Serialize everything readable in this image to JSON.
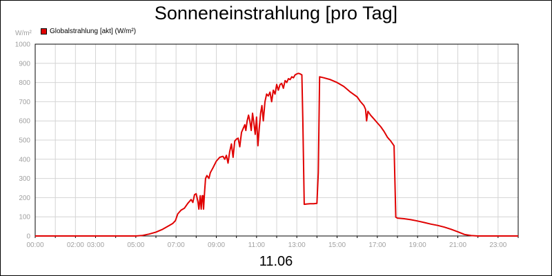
{
  "chart_data": {
    "type": "line",
    "title": "Sonneneinstrahlung [pro Tag]",
    "unit_label": "W/m²",
    "xlabel": "11.06",
    "ylim": [
      0,
      1000
    ],
    "xlim": [
      "00:00",
      "24:00"
    ],
    "y_ticks": [
      "0",
      "100",
      "200",
      "300",
      "400",
      "500",
      "600",
      "700",
      "800",
      "900",
      "1000"
    ],
    "x_ticks": [
      {
        "h": 0,
        "label": "00:00"
      },
      {
        "h": 2,
        "label": "02:00"
      },
      {
        "h": 3,
        "label": "03:00"
      },
      {
        "h": 5,
        "label": "05:00"
      },
      {
        "h": 7,
        "label": "07:00"
      },
      {
        "h": 9,
        "label": "09:00"
      },
      {
        "h": 11,
        "label": "11:00"
      },
      {
        "h": 13,
        "label": "13:00"
      },
      {
        "h": 15,
        "label": "15:00"
      },
      {
        "h": 17,
        "label": "17:00"
      },
      {
        "h": 19,
        "label": "19:00"
      },
      {
        "h": 21,
        "label": "21:00"
      },
      {
        "h": 23,
        "label": "23:00"
      }
    ],
    "grid": true,
    "legend_position": "top-left",
    "colors": {
      "series": "#e00000",
      "grid": "#d4d4d4",
      "axis": "#000000",
      "tick_text": "#a0a0a0"
    },
    "series": [
      {
        "name": "Globalstrahlung [akt] (W/m²)",
        "points": [
          [
            "00:00",
            0
          ],
          [
            "05:00",
            0
          ],
          [
            "05:20",
            3
          ],
          [
            "05:40",
            10
          ],
          [
            "06:00",
            20
          ],
          [
            "06:20",
            35
          ],
          [
            "06:40",
            55
          ],
          [
            "06:50",
            65
          ],
          [
            "06:58",
            80
          ],
          [
            "07:05",
            115
          ],
          [
            "07:15",
            135
          ],
          [
            "07:25",
            145
          ],
          [
            "07:35",
            170
          ],
          [
            "07:45",
            190
          ],
          [
            "07:50",
            175
          ],
          [
            "07:55",
            215
          ],
          [
            "08:00",
            220
          ],
          [
            "08:05",
            180
          ],
          [
            "08:08",
            140
          ],
          [
            "08:12",
            210
          ],
          [
            "08:15",
            140
          ],
          [
            "08:18",
            210
          ],
          [
            "08:20",
            210
          ],
          [
            "08:22",
            140
          ],
          [
            "08:25",
            230
          ],
          [
            "08:28",
            300
          ],
          [
            "08:32",
            315
          ],
          [
            "08:38",
            300
          ],
          [
            "08:42",
            330
          ],
          [
            "08:50",
            355
          ],
          [
            "09:00",
            390
          ],
          [
            "09:10",
            410
          ],
          [
            "09:20",
            415
          ],
          [
            "09:25",
            400
          ],
          [
            "09:30",
            420
          ],
          [
            "09:35",
            380
          ],
          [
            "09:40",
            440
          ],
          [
            "09:45",
            480
          ],
          [
            "09:50",
            410
          ],
          [
            "09:55",
            495
          ],
          [
            "10:00",
            505
          ],
          [
            "10:05",
            510
          ],
          [
            "10:10",
            465
          ],
          [
            "10:15",
            540
          ],
          [
            "10:20",
            560
          ],
          [
            "10:25",
            580
          ],
          [
            "10:28",
            550
          ],
          [
            "10:32",
            600
          ],
          [
            "10:36",
            630
          ],
          [
            "10:40",
            600
          ],
          [
            "10:44",
            550
          ],
          [
            "10:48",
            640
          ],
          [
            "10:52",
            590
          ],
          [
            "10:56",
            530
          ],
          [
            "11:00",
            620
          ],
          [
            "11:04",
            470
          ],
          [
            "11:08",
            560
          ],
          [
            "11:12",
            640
          ],
          [
            "11:16",
            680
          ],
          [
            "11:20",
            600
          ],
          [
            "11:25",
            700
          ],
          [
            "11:30",
            740
          ],
          [
            "11:35",
            730
          ],
          [
            "11:40",
            750
          ],
          [
            "11:45",
            700
          ],
          [
            "11:50",
            760
          ],
          [
            "11:55",
            740
          ],
          [
            "12:00",
            790
          ],
          [
            "12:05",
            760
          ],
          [
            "12:10",
            790
          ],
          [
            "12:15",
            795
          ],
          [
            "12:20",
            770
          ],
          [
            "12:25",
            810
          ],
          [
            "12:30",
            800
          ],
          [
            "12:35",
            820
          ],
          [
            "12:40",
            815
          ],
          [
            "12:45",
            830
          ],
          [
            "12:50",
            825
          ],
          [
            "12:55",
            840
          ],
          [
            "13:00",
            845
          ],
          [
            "13:05",
            848
          ],
          [
            "13:10",
            845
          ],
          [
            "13:15",
            840
          ],
          [
            "13:18",
            600
          ],
          [
            "13:22",
            165
          ],
          [
            "13:30",
            167
          ],
          [
            "13:40",
            168
          ],
          [
            "13:50",
            168
          ],
          [
            "14:00",
            170
          ],
          [
            "14:04",
            330
          ],
          [
            "14:08",
            830
          ],
          [
            "14:20",
            825
          ],
          [
            "14:40",
            815
          ],
          [
            "15:00",
            800
          ],
          [
            "15:20",
            780
          ],
          [
            "15:40",
            750
          ],
          [
            "16:00",
            725
          ],
          [
            "16:10",
            700
          ],
          [
            "16:20",
            680
          ],
          [
            "16:25",
            660
          ],
          [
            "16:28",
            600
          ],
          [
            "16:32",
            650
          ],
          [
            "16:40",
            630
          ],
          [
            "16:50",
            610
          ],
          [
            "17:00",
            590
          ],
          [
            "17:10",
            570
          ],
          [
            "17:20",
            545
          ],
          [
            "17:30",
            515
          ],
          [
            "17:40",
            495
          ],
          [
            "17:50",
            470
          ],
          [
            "17:55",
            98
          ],
          [
            "18:00",
            93
          ],
          [
            "18:20",
            90
          ],
          [
            "18:40",
            85
          ],
          [
            "19:00",
            78
          ],
          [
            "19:20",
            70
          ],
          [
            "19:40",
            62
          ],
          [
            "20:00",
            55
          ],
          [
            "20:20",
            46
          ],
          [
            "20:40",
            35
          ],
          [
            "21:00",
            22
          ],
          [
            "21:20",
            8
          ],
          [
            "21:40",
            2
          ],
          [
            "22:00",
            0
          ],
          [
            "24:00",
            0
          ]
        ]
      }
    ]
  }
}
